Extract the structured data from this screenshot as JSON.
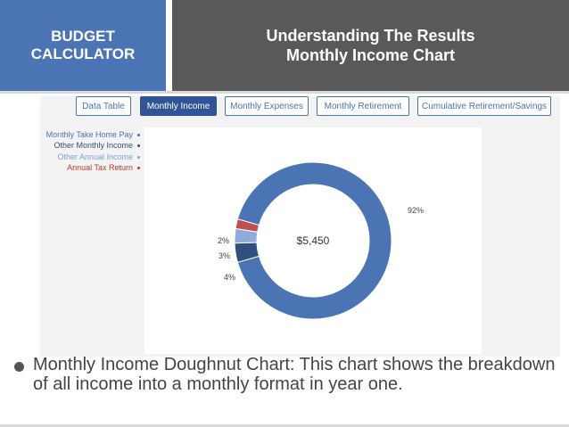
{
  "header": {
    "left_title": "BUDGET CALCULATOR",
    "right_title_line1": "Understanding The Results",
    "right_title_line2": "Monthly Income Chart"
  },
  "tabs": [
    {
      "label": "Data Table",
      "active": false
    },
    {
      "label": "Monthly Income",
      "active": true
    },
    {
      "label": "Monthly Expenses",
      "active": false
    },
    {
      "label": "Monthly Retirement",
      "active": false
    },
    {
      "label": "Cumulative Retirement/Savings",
      "active": false
    }
  ],
  "legend": [
    {
      "label": "Monthly Take Home Pay",
      "color": "#4a74b4"
    },
    {
      "label": "Other Monthly Income",
      "color": "#2f4f7f"
    },
    {
      "label": "Other Annual Income",
      "color": "#7f9fd4"
    },
    {
      "label": "Annual Tax Return",
      "color": "#c0392b"
    }
  ],
  "chart_data": {
    "type": "pie",
    "center_label": "$5,450",
    "slices": [
      {
        "name": "Monthly Take Home Pay",
        "value": 92,
        "label": "92%",
        "color": "#4a74b4"
      },
      {
        "name": "Other Monthly Income",
        "value": 4,
        "label": "4%",
        "color": "#2f4f7f"
      },
      {
        "name": "Other Annual Income",
        "value": 3,
        "label": "3%",
        "color": "#8fabd9"
      },
      {
        "name": "Annual Tax Return",
        "value": 2,
        "label": "2%",
        "color": "#c0504d"
      }
    ]
  },
  "bullet_text": "Monthly Income Doughnut Chart: This chart shows the breakdown of all income into a monthly format in year one."
}
